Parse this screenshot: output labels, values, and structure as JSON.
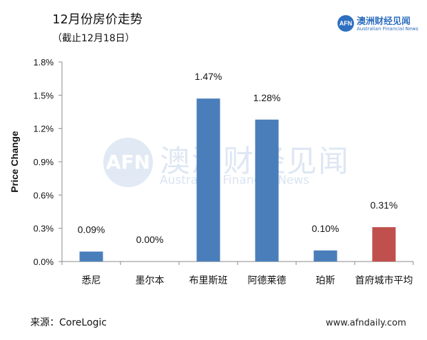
{
  "header": {
    "title": "12月份房价走势",
    "subtitle": "（截止12月18日）"
  },
  "logo": {
    "badge": "AFN",
    "name_cn": "澳洲财经见闻",
    "name_en": "Australian Financial News"
  },
  "watermark": {
    "badge": "AFN",
    "name_cn": "澳洲财经见闻",
    "name_en": "Australian Financial News"
  },
  "footer": {
    "source": "来源：CoreLogic",
    "website": "www.afndaily.com"
  },
  "colors": {
    "bar": "#4a7ebb",
    "highlight_bar": "#c0504d",
    "axis": "#888888"
  },
  "chart_data": {
    "type": "bar",
    "title": "",
    "xlabel": "",
    "ylabel": "Price Change",
    "categories": [
      "悉尼",
      "墨尔本",
      "布里斯班",
      "阿德莱德",
      "珀斯",
      "首府城市平均"
    ],
    "values": [
      0.09,
      0.0,
      1.47,
      1.28,
      0.1,
      0.31
    ],
    "value_labels": [
      "0.09%",
      "0.00%",
      "1.47%",
      "1.28%",
      "0.10%",
      "0.31%"
    ],
    "highlight_index": 5,
    "ylim": [
      0,
      1.8
    ],
    "yticks": [
      0,
      0.3,
      0.6,
      0.9,
      1.2,
      1.5,
      1.8
    ],
    "ytick_labels": [
      "0.0%",
      "0.3%",
      "0.6%",
      "0.9%",
      "1.2%",
      "1.5%",
      "1.8%"
    ],
    "grid": false,
    "legend": "none"
  }
}
